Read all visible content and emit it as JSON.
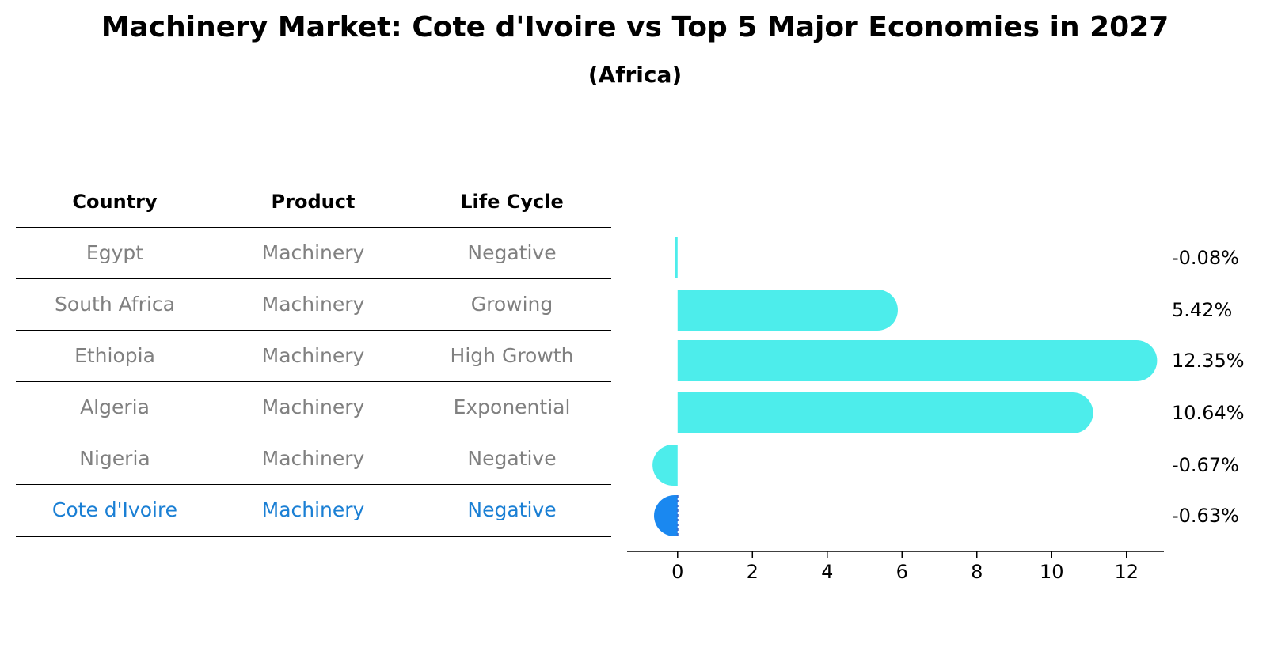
{
  "title": "Machinery Market: Cote d'Ivoire vs Top 5 Major Economies in 2027",
  "subtitle": "(Africa)",
  "table": {
    "headers": [
      "Country",
      "Product",
      "Life Cycle"
    ],
    "rows": [
      {
        "country": "Egypt",
        "product": "Machinery",
        "life_cycle": "Negative"
      },
      {
        "country": "South Africa",
        "product": "Machinery",
        "life_cycle": "Growing"
      },
      {
        "country": "Ethiopia",
        "product": "Machinery",
        "life_cycle": "High Growth"
      },
      {
        "country": "Algeria",
        "product": "Machinery",
        "life_cycle": "Exponential"
      },
      {
        "country": "Nigeria",
        "product": "Machinery",
        "life_cycle": "Negative"
      },
      {
        "country": "Cote d'Ivoire",
        "product": "Machinery",
        "life_cycle": "Negative"
      }
    ]
  },
  "colors": {
    "bar": "#4dedeb",
    "highlight_bar": "#1a88f0",
    "highlight_text": "#1a7fd4",
    "muted_text": "#808080"
  },
  "chart_data": {
    "type": "bar",
    "orientation": "horizontal",
    "categories": [
      "Egypt",
      "South Africa",
      "Ethiopia",
      "Algeria",
      "Nigeria",
      "Cote d'Ivoire"
    ],
    "values": [
      -0.08,
      5.42,
      12.35,
      10.64,
      -0.67,
      -0.63
    ],
    "value_labels": [
      "-0.08%",
      "5.42%",
      "12.35%",
      "10.64%",
      "-0.67%",
      "-0.63%"
    ],
    "highlight": "Cote d'Ivoire",
    "xlim": [
      -1.35,
      13.0
    ],
    "xticks": [
      0,
      2,
      4,
      6,
      8,
      10,
      12
    ],
    "xtick_labels": [
      "0",
      "2",
      "4",
      "6",
      "8",
      "10",
      "12"
    ],
    "title": "Machinery Market: Cote d'Ivoire vs Top 5 Major Economies in 2027",
    "subtitle": "(Africa)",
    "xlabel": "",
    "ylabel": ""
  }
}
